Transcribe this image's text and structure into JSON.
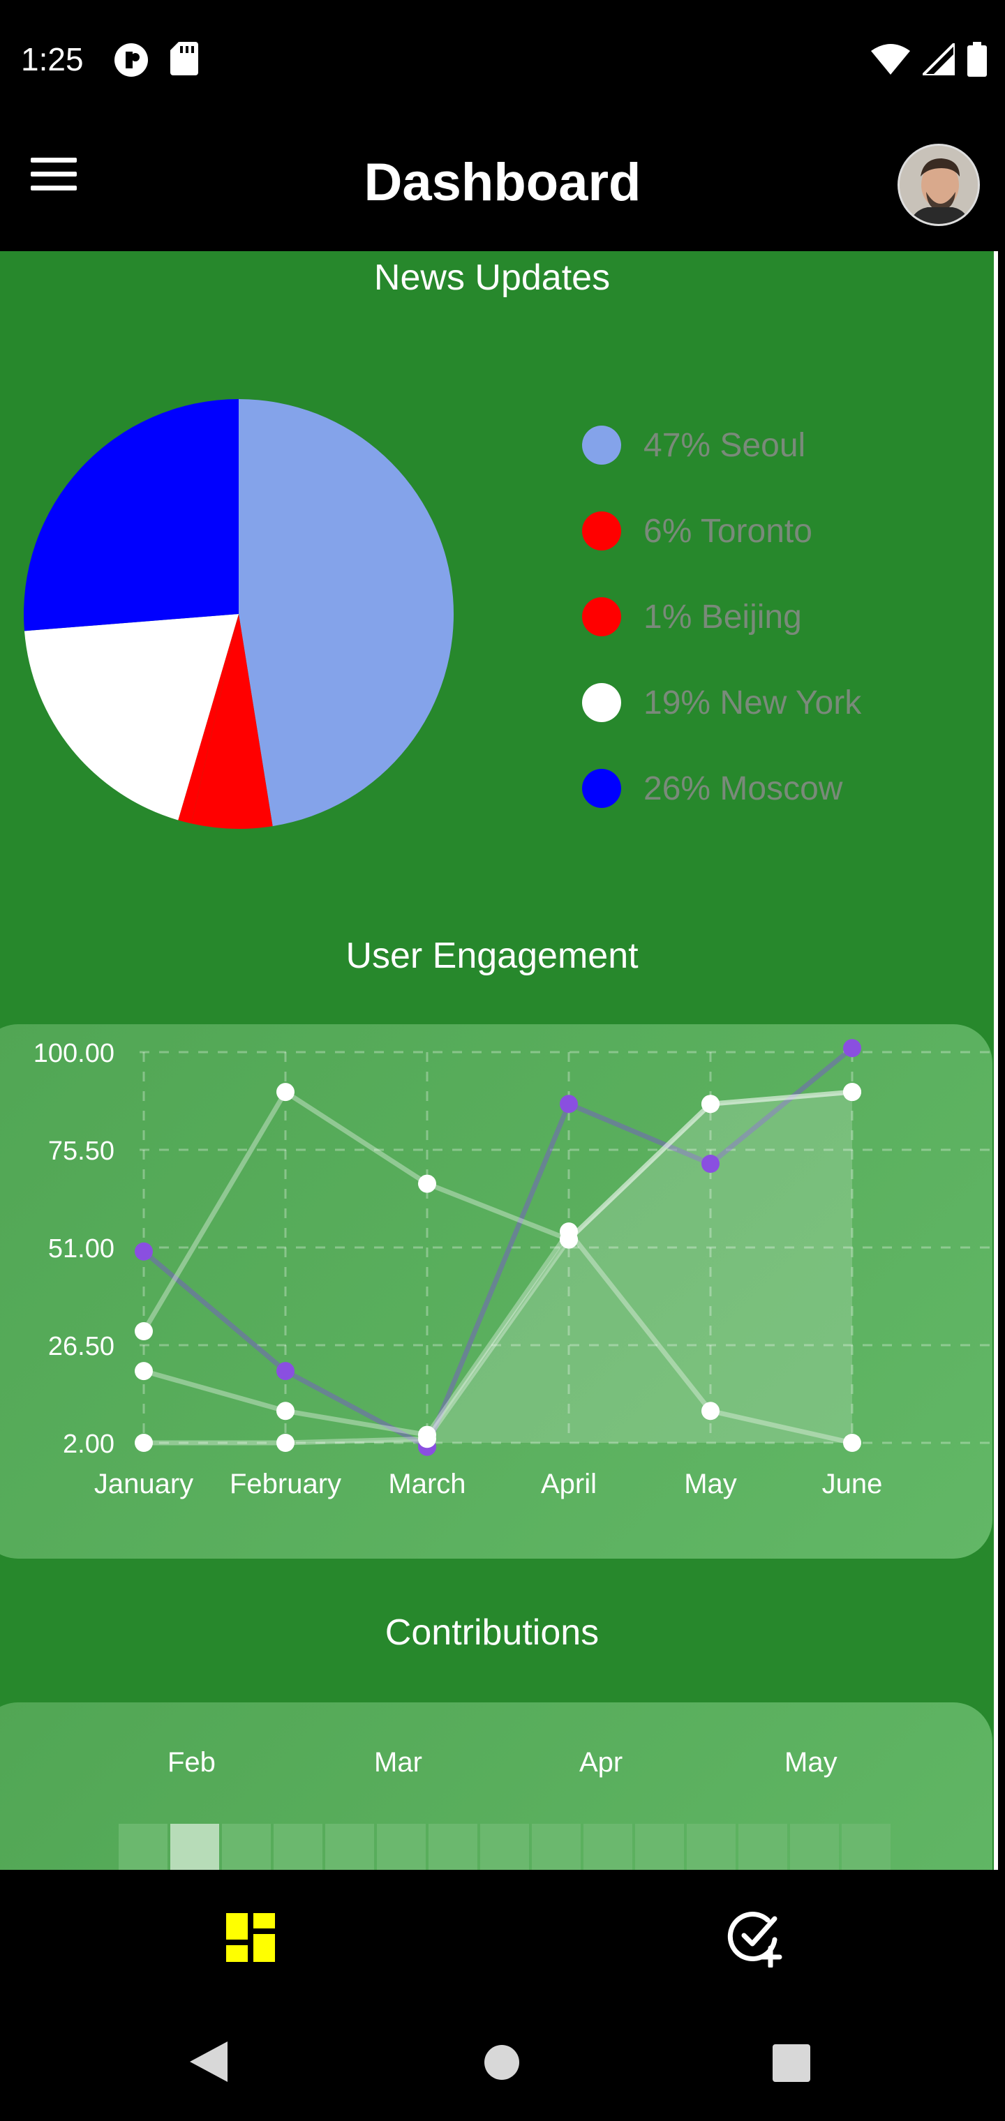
{
  "status_bar": {
    "time": "1:25"
  },
  "app_bar": {
    "title": "Dashboard"
  },
  "news": {
    "title": "News Updates",
    "slices": [
      {
        "label": "47% Seoul",
        "value": 47,
        "color": "#84a3ea"
      },
      {
        "label": "6% Toronto",
        "value": 6,
        "color": "#ff0000"
      },
      {
        "label": "1% Beijing",
        "value": 1,
        "color": "#ff0000"
      },
      {
        "label": "19% New York",
        "value": 19,
        "color": "#ffffff"
      },
      {
        "label": "26% Moscow",
        "value": 26,
        "color": "#0000ff"
      }
    ]
  },
  "engagement": {
    "title": "User Engagement"
  },
  "chart_data": {
    "type": "line",
    "categories": [
      "January",
      "February",
      "March",
      "April",
      "May",
      "June"
    ],
    "y_ticks": [
      "100.00",
      "75.50",
      "51.00",
      "26.50",
      "2.00"
    ],
    "ylim": [
      2,
      100
    ],
    "grid": true,
    "series": [
      {
        "color": "#8a4fe0",
        "values": [
          50,
          20,
          1,
          87,
          72,
          101
        ]
      },
      {
        "color": "#ffffff",
        "values": [
          20,
          10,
          4,
          55,
          10,
          2
        ]
      },
      {
        "color": "#ffffff",
        "values": [
          30,
          90,
          67,
          53,
          87,
          90
        ]
      },
      {
        "color": "#ffffff",
        "values": [
          2,
          2,
          3,
          53,
          87,
          90
        ],
        "fill": true
      }
    ]
  },
  "contributions": {
    "title": "Contributions",
    "months": [
      "Feb",
      "Mar",
      "Apr",
      "May"
    ]
  },
  "colors": {
    "background": "#27882c",
    "card": "#5cb160",
    "accent": "#ffff00"
  },
  "icons": {
    "menu": "menu-icon",
    "dashboard": "dashboard-icon",
    "add_task": "add-task-icon",
    "back": "back-icon",
    "home": "home-icon",
    "recents": "recents-icon"
  }
}
